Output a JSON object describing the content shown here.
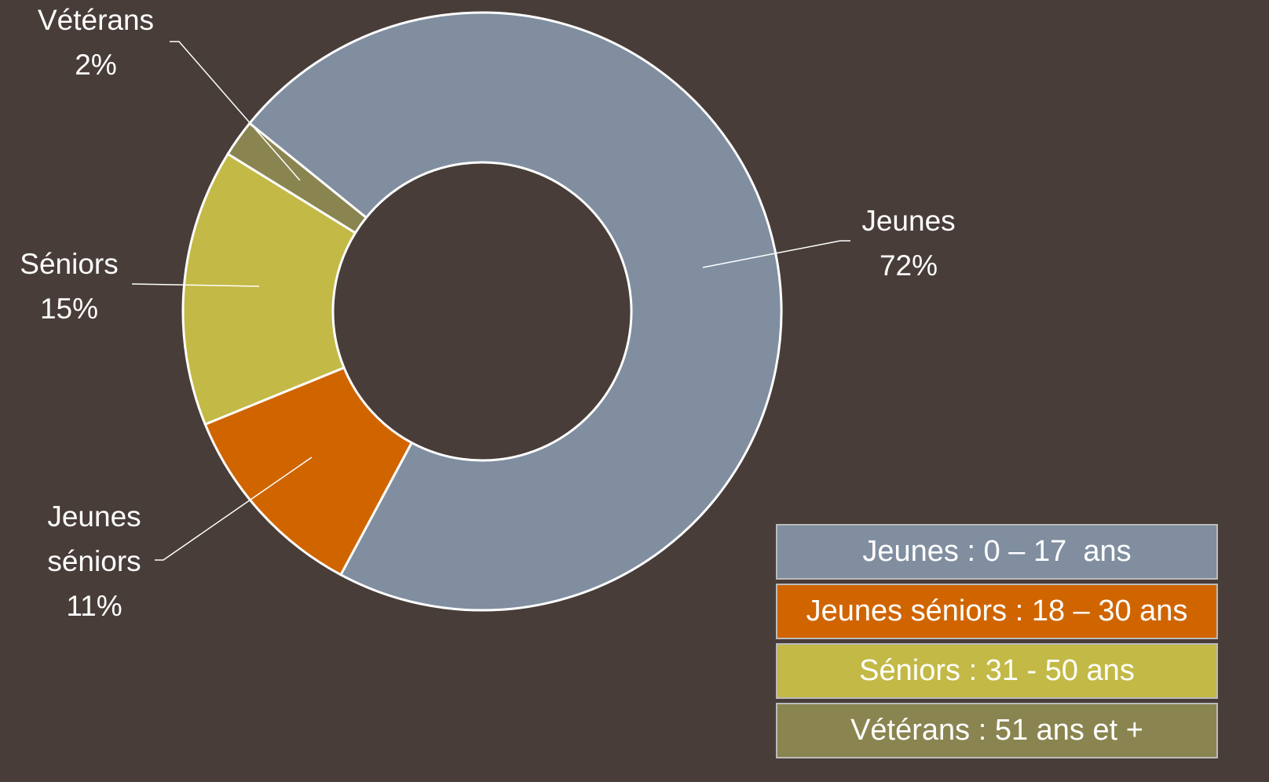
{
  "chart_data": {
    "type": "donut",
    "categories": [
      "Jeunes",
      "Jeunes séniors",
      "Séniors",
      "Vétérans"
    ],
    "values": [
      72,
      11,
      15,
      2
    ],
    "value_labels": [
      "72%",
      "11%",
      "15%",
      "2%"
    ],
    "colors": [
      "#808ea0",
      "#d06500",
      "#c3b946",
      "#8a8450"
    ],
    "legend_labels": [
      "Jeunes : 0 – 17  ans",
      "Jeunes séniors : 18 – 30 ans",
      "Séniors : 31 - 50 ans",
      "Vétérans : 51 ans et +"
    ]
  }
}
